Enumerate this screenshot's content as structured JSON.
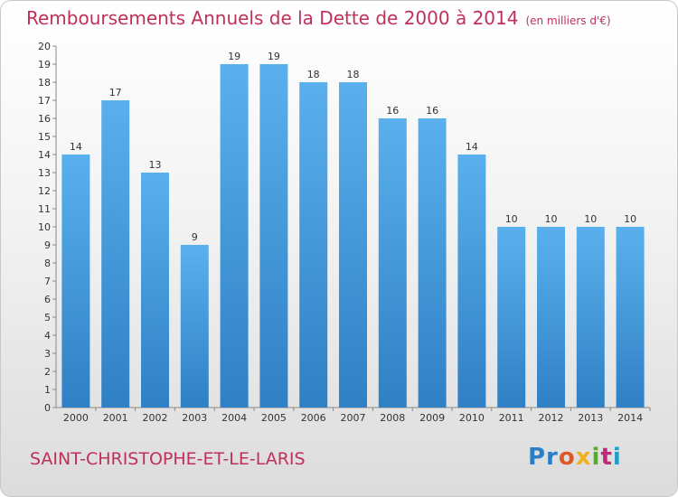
{
  "title": "Remboursements Annuels de la Dette de 2000 à 2014",
  "unit_note": "(en milliers d'€)",
  "commune": "SAINT-CHRISTOPHE-ET-LE-LARIS",
  "logo": {
    "text": "Proxiti",
    "letters": [
      "Pr",
      "o",
      "x",
      "i",
      "t",
      "i"
    ]
  },
  "colors": {
    "bar": "#4fa3e3",
    "bar_dark": "#2f7fc0",
    "title": "#c0305a"
  },
  "chart_data": {
    "type": "bar",
    "categories": [
      "2000",
      "2001",
      "2002",
      "2003",
      "2004",
      "2005",
      "2006",
      "2007",
      "2008",
      "2009",
      "2010",
      "2011",
      "2012",
      "2013",
      "2014"
    ],
    "values": [
      14,
      17,
      13,
      9,
      19,
      19,
      18,
      18,
      16,
      16,
      14,
      10,
      10,
      10,
      10
    ],
    "ylim": [
      0,
      20
    ],
    "yticks": [
      0,
      1,
      2,
      3,
      4,
      5,
      6,
      7,
      8,
      9,
      10,
      11,
      12,
      13,
      14,
      15,
      16,
      17,
      18,
      19,
      20
    ],
    "grid": false,
    "data_labels": true
  }
}
